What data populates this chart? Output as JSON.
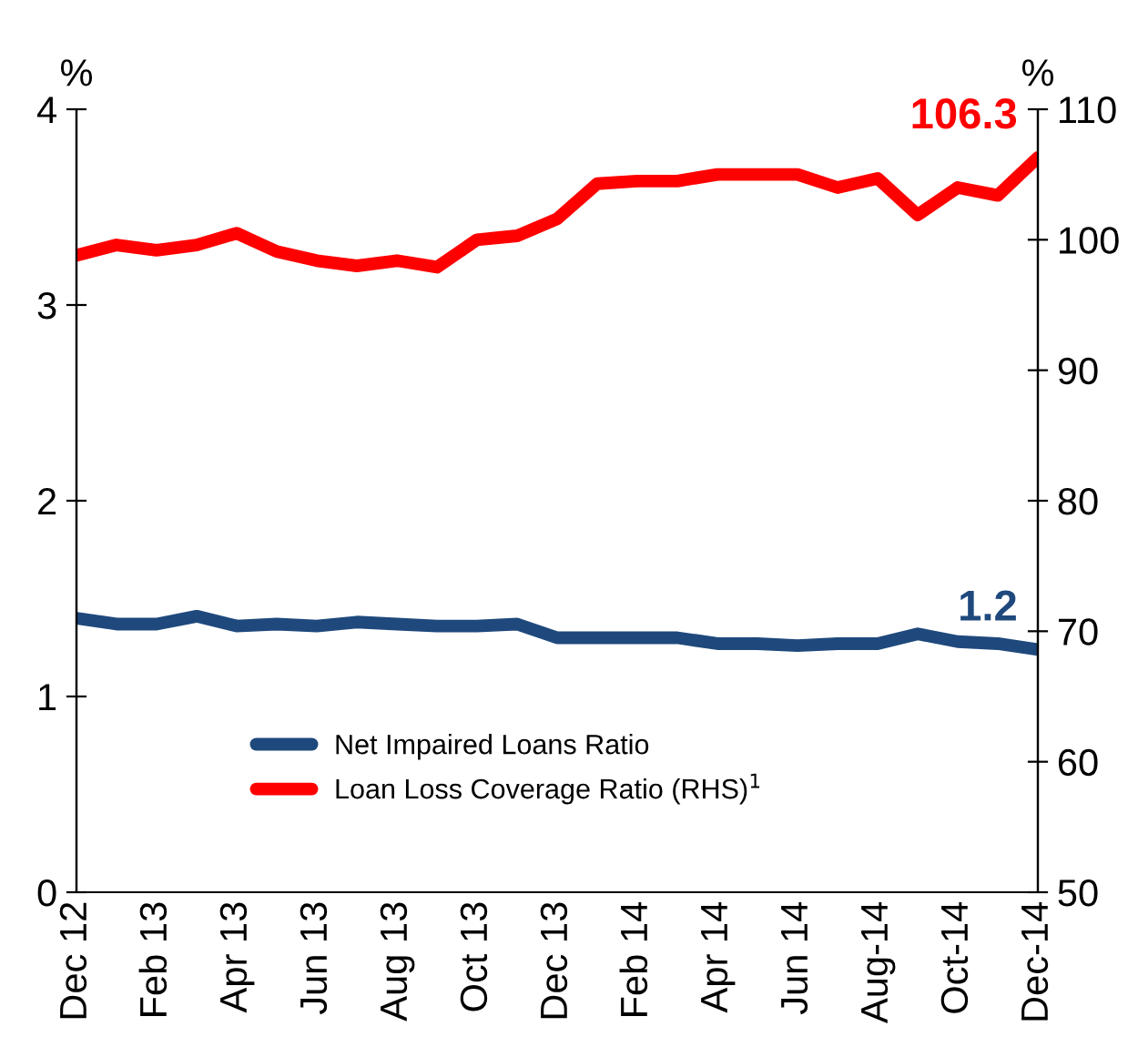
{
  "chart_data": {
    "type": "line",
    "categories": [
      "Dec 12",
      null,
      "Feb 13",
      null,
      "Apr 13",
      null,
      "Jun 13",
      null,
      "Aug 13",
      null,
      "Oct 13",
      null,
      "Dec 13",
      null,
      "Feb 14",
      null,
      "Apr 14",
      null,
      "Jun 14",
      null,
      "Aug-14",
      null,
      "Oct-14",
      null,
      "Dec-14"
    ],
    "series": [
      {
        "name": "Net Impaired Loans Ratio",
        "color": "#1f497d",
        "values": [
          1.4,
          1.37,
          1.37,
          1.41,
          1.36,
          1.37,
          1.36,
          1.38,
          1.37,
          1.36,
          1.36,
          1.37,
          1.3,
          1.3,
          1.3,
          1.3,
          1.27,
          1.27,
          1.26,
          1.27,
          1.27,
          1.32,
          1.28,
          1.27,
          1.24
        ]
      },
      {
        "name": "Loan Loss Coverage Ratio (RHS)$^{1}$",
        "color": "#ff0000",
        "axis": "y2",
        "values": [
          98.8,
          99.6,
          99.2,
          99.6,
          100.5,
          99.1,
          98.4,
          98.0,
          98.4,
          97.9,
          100.0,
          100.3,
          101.6,
          104.3,
          104.5,
          104.5,
          105.0,
          105.0,
          105.0,
          104.0,
          104.7,
          101.9,
          104.0,
          103.4,
          106.3
        ]
      }
    ],
    "ylabel": "%",
    "y2label": "%",
    "ylim": [
      0,
      4
    ],
    "yticks": [
      0,
      1,
      2,
      3,
      4
    ],
    "y2lim": [
      50,
      110
    ],
    "y2ticks": [
      50,
      60,
      70,
      80,
      90,
      100,
      110
    ],
    "annotations": [
      "1.2",
      "106.3"
    ],
    "legend": "bottom",
    "grid": false,
    "marker": "none",
    "line_style": "solid"
  }
}
